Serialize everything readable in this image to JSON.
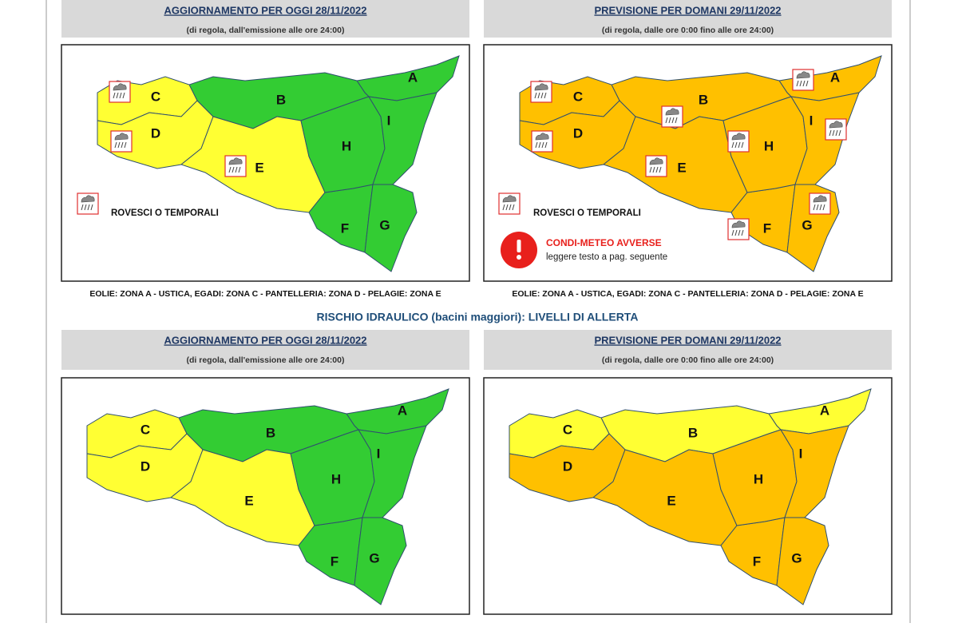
{
  "section_title": "RISCHIO IDRAULICO (bacini maggiori): LIVELLI DI ALLERTA",
  "panels": [
    {
      "title": "AGGIORNAMENTO PER OGGI 28/11/2022",
      "subtitle": "(di regola, dall'emissione alle ore 24:00)",
      "zones": [
        {
          "label": "A",
          "color": "#33cc33"
        },
        {
          "label": "B",
          "color": "#33cc33"
        },
        {
          "label": "C",
          "color": "#ffff33"
        },
        {
          "label": "D",
          "color": "#ffff33"
        },
        {
          "label": "E",
          "color": "#ffff33"
        },
        {
          "label": "F",
          "color": "#33cc33"
        },
        {
          "label": "G",
          "color": "#33cc33"
        },
        {
          "label": "H",
          "color": "#33cc33"
        },
        {
          "label": "I",
          "color": "#33cc33"
        }
      ],
      "legend": "ROVESCI O TEMPORALI",
      "caption": "EOLIE: ZONA A - USTICA, EGADI: ZONA C - PANTELLERIA: ZONA D - PELAGIE: ZONA E"
    },
    {
      "title": "PREVISIONE PER DOMANI 29/11/2022",
      "subtitle": "(di regola, dalle ore 0:00 fino alle ore 24:00)",
      "zones": [
        {
          "label": "A",
          "color": "#ffc000"
        },
        {
          "label": "B",
          "color": "#ffc000"
        },
        {
          "label": "C",
          "color": "#ffc000"
        },
        {
          "label": "D",
          "color": "#ffc000"
        },
        {
          "label": "E",
          "color": "#ffc000"
        },
        {
          "label": "F",
          "color": "#ffc000"
        },
        {
          "label": "G",
          "color": "#ffc000"
        },
        {
          "label": "H",
          "color": "#ffc000"
        },
        {
          "label": "I",
          "color": "#ffc000"
        }
      ],
      "legend": "ROVESCI O TEMPORALI",
      "alert": {
        "title": "CONDI-METEO AVVERSE",
        "text": "leggere testo a pag. seguente"
      },
      "caption": "EOLIE: ZONA A - USTICA, EGADI: ZONA C - PANTELLERIA: ZONA D - PELAGIE: ZONA E"
    },
    {
      "title": "AGGIORNAMENTO PER OGGI 28/11/2022",
      "subtitle": "(di regola, dall'emissione alle ore 24:00)",
      "zones": [
        {
          "label": "A",
          "color": "#33cc33"
        },
        {
          "label": "B",
          "color": "#33cc33"
        },
        {
          "label": "C",
          "color": "#ffff33"
        },
        {
          "label": "D",
          "color": "#ffff33"
        },
        {
          "label": "E",
          "color": "#ffff33"
        },
        {
          "label": "F",
          "color": "#33cc33"
        },
        {
          "label": "G",
          "color": "#33cc33"
        },
        {
          "label": "H",
          "color": "#33cc33"
        },
        {
          "label": "I",
          "color": "#33cc33"
        }
      ]
    },
    {
      "title": "PREVISIONE PER DOMANI 29/11/2022",
      "subtitle": "(di regola, dalle ore 0:00 fino alle ore 24:00)",
      "zones": [
        {
          "label": "A",
          "color": "#ffff33"
        },
        {
          "label": "B",
          "color": "#ffff33"
        },
        {
          "label": "C",
          "color": "#ffff33"
        },
        {
          "label": "D",
          "color": "#ffc000"
        },
        {
          "label": "E",
          "color": "#ffc000"
        },
        {
          "label": "F",
          "color": "#ffc000"
        },
        {
          "label": "G",
          "color": "#ffc000"
        },
        {
          "label": "H",
          "color": "#ffc000"
        },
        {
          "label": "I",
          "color": "#ffc000"
        }
      ]
    }
  ]
}
